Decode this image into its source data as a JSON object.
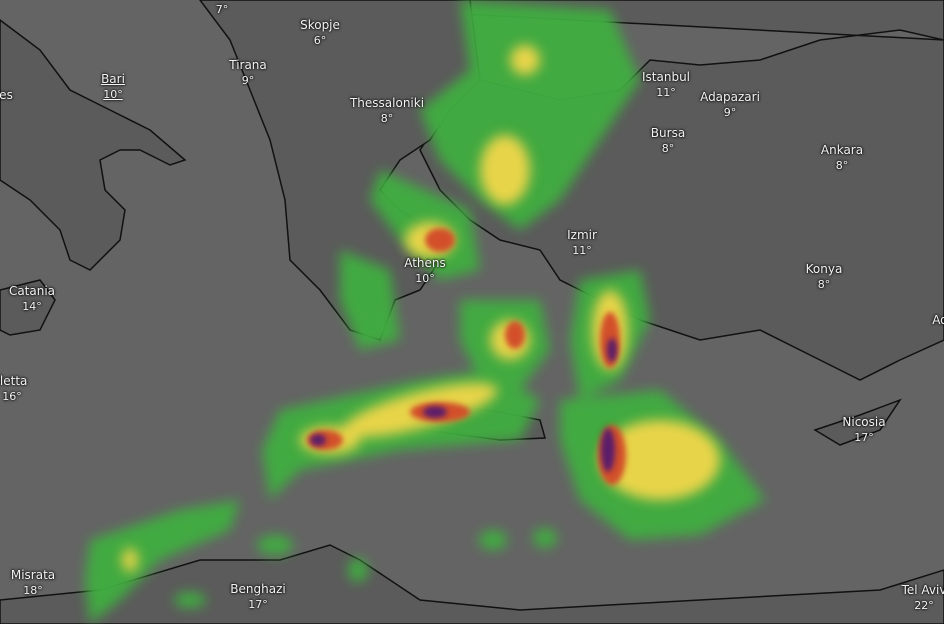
{
  "map": {
    "layer": "precipitation",
    "colors": {
      "sea": "#646464",
      "land": "#5a5a5a",
      "coast": "#111111",
      "light": "#3fae3f",
      "moderate": "#e8d44a",
      "heavy": "#d2502a",
      "extreme": "#5a1a6a"
    }
  },
  "cities": [
    {
      "name": "",
      "temp": "7°"
    },
    {
      "name": "Skopje",
      "temp": "6°"
    },
    {
      "name": "Tirana",
      "temp": "9°"
    },
    {
      "name": "Bari",
      "temp": "10°"
    },
    {
      "name": "es",
      "temp": ""
    },
    {
      "name": "Thessaloniki",
      "temp": "8°"
    },
    {
      "name": "Istanbul",
      "temp": "11°"
    },
    {
      "name": "Adapazari",
      "temp": "9°"
    },
    {
      "name": "Bursa",
      "temp": "8°"
    },
    {
      "name": "Ankara",
      "temp": "8°"
    },
    {
      "name": "Izmir",
      "temp": "11°"
    },
    {
      "name": "Athens",
      "temp": "10°"
    },
    {
      "name": "Konya",
      "temp": "8°"
    },
    {
      "name": "Catania",
      "temp": "14°"
    },
    {
      "name": "lletta",
      "temp": "16°"
    },
    {
      "name": "Nicosia",
      "temp": "17°"
    },
    {
      "name": "Misrata",
      "temp": "18°"
    },
    {
      "name": "Benghazi",
      "temp": "17°"
    },
    {
      "name": "Tel Aviv",
      "temp": "22°"
    },
    {
      "name": "Ad",
      "temp": ""
    }
  ]
}
